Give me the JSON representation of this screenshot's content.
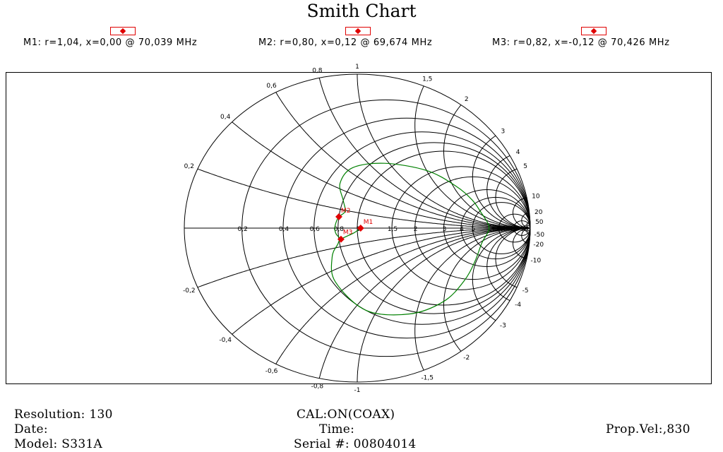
{
  "title": "Smith Chart",
  "markers": [
    {
      "label": "M1: r=1,04, x=0,00 @ 70,039 MHz"
    },
    {
      "label": "M2: r=0,80, x=0,12 @ 69,674 MHz"
    },
    {
      "label": "M3: r=0,82, x=-0,12 @ 70,426 MHz"
    }
  ],
  "chart_data": {
    "type": "smith",
    "title": "Smith Chart",
    "r_circles": [
      0.2,
      0.4,
      0.6,
      0.8,
      1,
      1.5,
      2,
      3,
      4,
      5,
      10,
      20,
      50
    ],
    "x_arcs": [
      0.2,
      0.4,
      0.6,
      0.8,
      1,
      1.5,
      2,
      3,
      4,
      5,
      10,
      20,
      50
    ],
    "resistance_labels": [
      "0,2",
      "0,4",
      "0,6",
      "0,8",
      "1",
      "1,5",
      "2",
      "3",
      "4",
      "5",
      "10",
      "20",
      "50"
    ],
    "reactance_labels": [
      {
        "x": 0.2,
        "text": "0,2"
      },
      {
        "x": 0.4,
        "text": "0,4"
      },
      {
        "x": 0.6,
        "text": "0,6"
      },
      {
        "x": 0.8,
        "text": "0,8"
      },
      {
        "x": 1,
        "text": "1"
      },
      {
        "x": 1.5,
        "text": "1,5"
      },
      {
        "x": 2,
        "text": "2"
      },
      {
        "x": 3,
        "text": "3"
      },
      {
        "x": 4,
        "text": "4"
      },
      {
        "x": 5,
        "text": "5"
      },
      {
        "x": 10,
        "text": "10"
      },
      {
        "x": 20,
        "text": "20"
      },
      {
        "x": 50,
        "text": "50"
      },
      {
        "x": -0.2,
        "text": "-0,2"
      },
      {
        "x": -0.4,
        "text": "-0,4"
      },
      {
        "x": -0.6,
        "text": "-0,6"
      },
      {
        "x": -0.8,
        "text": "-0,8"
      },
      {
        "x": -1,
        "text": "-1"
      },
      {
        "x": -1.5,
        "text": "-1,5"
      },
      {
        "x": -2,
        "text": "-2"
      },
      {
        "x": -3,
        "text": "-3"
      },
      {
        "x": -4,
        "text": "-4"
      },
      {
        "x": -5,
        "text": "-5"
      },
      {
        "x": -10,
        "text": "-10"
      },
      {
        "x": -20,
        "text": "-20"
      },
      {
        "x": -50,
        "text": "-50"
      }
    ],
    "markers": [
      {
        "name": "M1",
        "r": 1.04,
        "x": 0.0,
        "freq_mhz": 70.039
      },
      {
        "name": "M2",
        "r": 0.8,
        "x": 0.12,
        "freq_mhz": 69.674
      },
      {
        "name": "M3",
        "r": 0.82,
        "x": -0.12,
        "freq_mhz": 70.426
      }
    ],
    "trace": [
      {
        "r": 0.82,
        "x": -0.12
      },
      {
        "r": 0.78,
        "x": -0.06
      },
      {
        "r": 0.77,
        "x": 0.0
      },
      {
        "r": 0.78,
        "x": 0.06
      },
      {
        "r": 0.8,
        "x": 0.12
      },
      {
        "r": 0.85,
        "x": 0.19
      },
      {
        "r": 0.8,
        "x": 0.3
      },
      {
        "r": 0.7,
        "x": 0.45
      },
      {
        "r": 0.7,
        "x": 0.65
      },
      {
        "r": 0.9,
        "x": 0.95
      },
      {
        "r": 1.4,
        "x": 1.5
      },
      {
        "r": 2.3,
        "x": 2.1
      },
      {
        "r": 3.6,
        "x": 2.5
      },
      {
        "r": 5.3,
        "x": 2.2
      },
      {
        "r": 6.8,
        "x": 1.3
      },
      {
        "r": 7.4,
        "x": 0.2
      },
      {
        "r": 7.0,
        "x": -1.0
      },
      {
        "r": 5.4,
        "x": -2.2
      },
      {
        "r": 3.3,
        "x": -2.9
      },
      {
        "r": 1.9,
        "x": -2.6
      },
      {
        "r": 1.1,
        "x": -2.0
      },
      {
        "r": 0.75,
        "x": -1.4
      },
      {
        "r": 0.6,
        "x": -0.9
      },
      {
        "r": 0.62,
        "x": -0.5
      },
      {
        "r": 0.7,
        "x": -0.28
      },
      {
        "r": 0.78,
        "x": -0.17
      },
      {
        "r": 0.82,
        "x": -0.12
      },
      {
        "r": 0.96,
        "x": -0.06
      },
      {
        "r": 1.04,
        "x": 0.0
      }
    ],
    "colors": {
      "grid": "#000000",
      "trace": "#008000",
      "marker": "#e00000"
    }
  },
  "footer": {
    "resolution": "Resolution:  130",
    "date": "Date:",
    "model": "Model:  S331A",
    "cal": "CAL:ON(COAX)",
    "time": "Time:",
    "serial": "Serial #:  00804014",
    "prop_vel": "Prop.Vel:,830"
  }
}
